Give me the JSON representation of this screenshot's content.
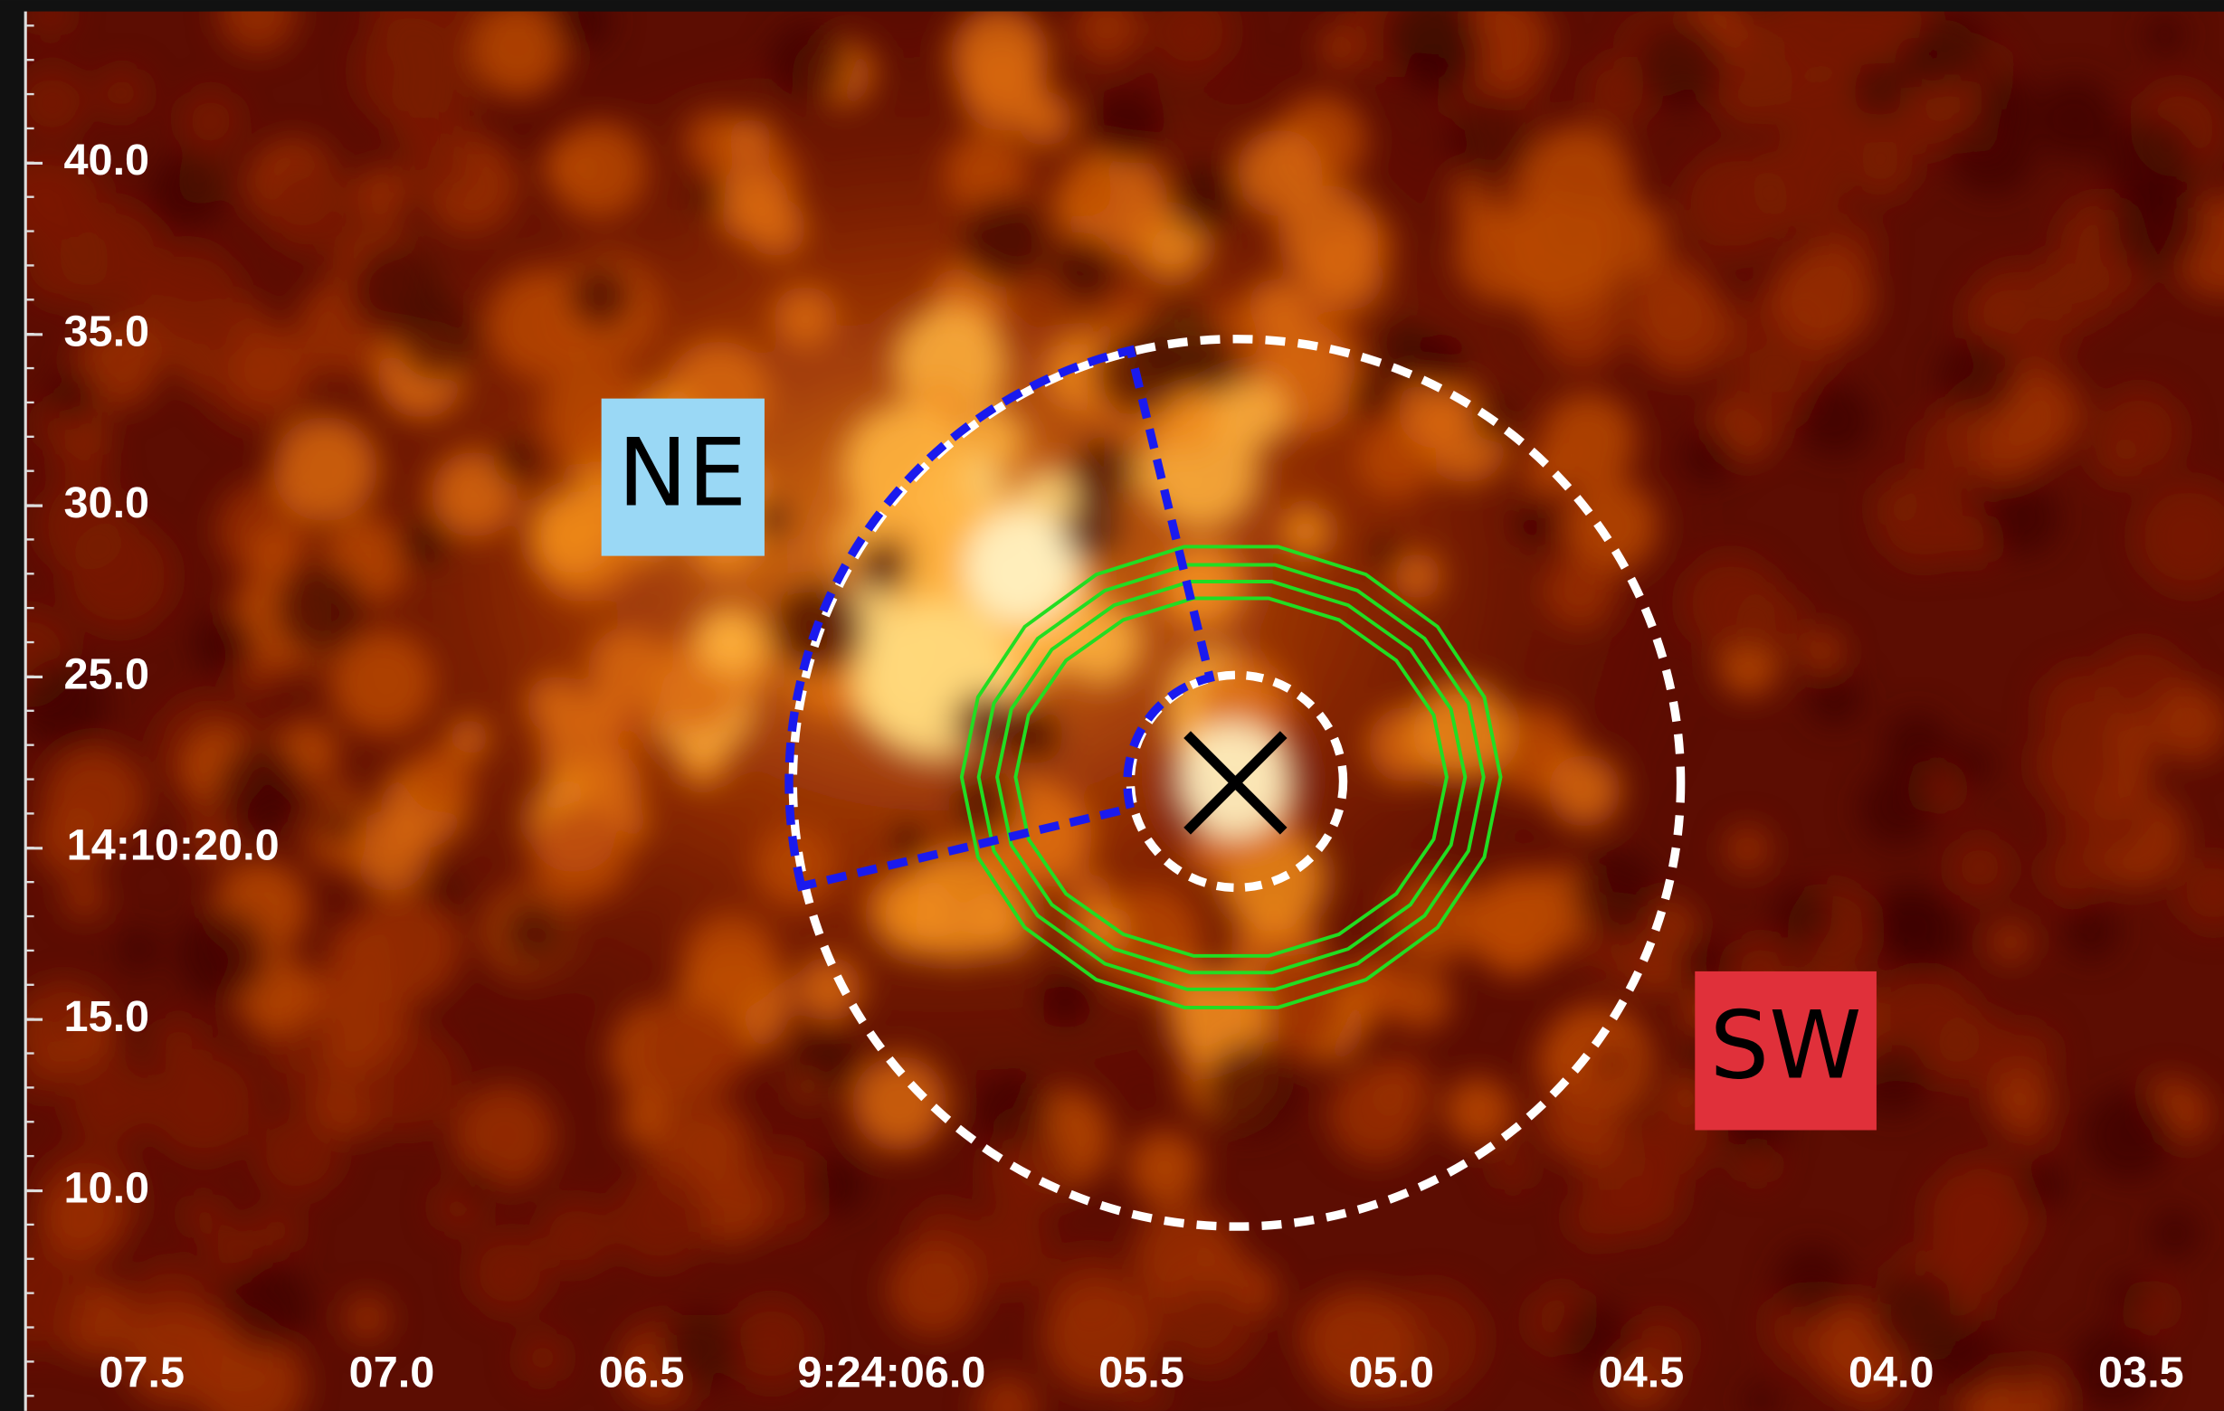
{
  "y_axis": {
    "tick_labels": [
      "40.0",
      "35.0",
      "30.0",
      "25.0",
      "14:10:20.0",
      "15.0",
      "10.0"
    ]
  },
  "x_axis": {
    "tick_labels": [
      "07.5",
      "07.0",
      "06.5",
      "9:24:06.0",
      "05.5",
      "05.0",
      "04.5",
      "04.0",
      "03.5"
    ]
  },
  "regions": {
    "ne": "NE",
    "sw": "SW"
  }
}
